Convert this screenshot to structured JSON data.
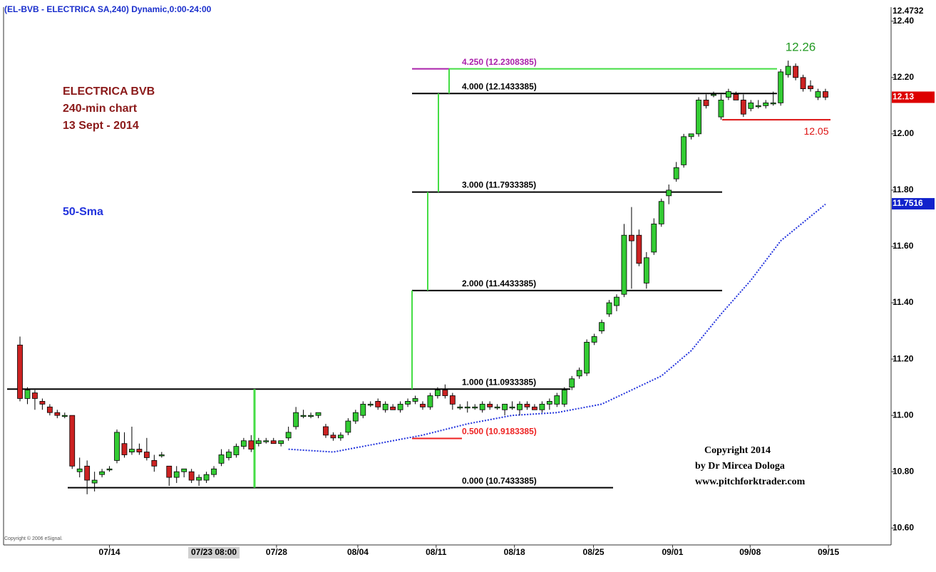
{
  "chart_data": {
    "type": "candlestick",
    "title": "(EL-BVB - ELECTRICA SA,240) Dynamic,0:00-24:00",
    "up_color": "#33cc33",
    "down_color": "#cc2222",
    "candles": [
      [
        11.25,
        11.28,
        11.05,
        11.06
      ],
      [
        11.06,
        11.1,
        11.04,
        11.09
      ],
      [
        11.08,
        11.09,
        11.02,
        11.06
      ],
      [
        11.05,
        11.06,
        11.02,
        11.04
      ],
      [
        11.03,
        11.04,
        11.0,
        11.01
      ],
      [
        11.01,
        11.02,
        10.99,
        11.0
      ],
      [
        11.0,
        11.01,
        10.99,
        11.0
      ],
      [
        11.0,
        11.0,
        10.81,
        10.82
      ],
      [
        10.8,
        10.85,
        10.78,
        10.81
      ],
      [
        10.82,
        10.84,
        10.72,
        10.77
      ],
      [
        10.76,
        10.8,
        10.73,
        10.77
      ],
      [
        10.79,
        10.81,
        10.78,
        10.8
      ],
      [
        10.81,
        10.82,
        10.8,
        10.81
      ],
      [
        10.84,
        10.95,
        10.83,
        10.94
      ],
      [
        10.9,
        10.94,
        10.85,
        10.86
      ],
      [
        10.87,
        10.96,
        10.86,
        10.88
      ],
      [
        10.88,
        10.9,
        10.86,
        10.87
      ],
      [
        10.87,
        10.92,
        10.84,
        10.85
      ],
      [
        10.84,
        10.86,
        10.8,
        10.82
      ],
      [
        10.86,
        10.87,
        10.85,
        10.86
      ],
      [
        10.82,
        10.82,
        10.75,
        10.78
      ],
      [
        10.78,
        10.82,
        10.76,
        10.8
      ],
      [
        10.8,
        10.81,
        10.78,
        10.81
      ],
      [
        10.8,
        10.81,
        10.76,
        10.77
      ],
      [
        10.77,
        10.79,
        10.75,
        10.78
      ],
      [
        10.77,
        10.8,
        10.76,
        10.79
      ],
      [
        10.79,
        10.82,
        10.78,
        10.81
      ],
      [
        10.83,
        10.88,
        10.82,
        10.86
      ],
      [
        10.85,
        10.88,
        10.84,
        10.87
      ],
      [
        10.86,
        10.9,
        10.85,
        10.89
      ],
      [
        10.89,
        10.92,
        10.88,
        10.91
      ],
      [
        10.91,
        10.93,
        10.87,
        10.88
      ],
      [
        10.9,
        10.92,
        10.89,
        10.91
      ],
      [
        10.91,
        10.92,
        10.9,
        10.91
      ],
      [
        10.91,
        10.92,
        10.9,
        10.9
      ],
      [
        10.9,
        10.91,
        10.89,
        10.91
      ],
      [
        10.92,
        10.96,
        10.91,
        10.94
      ],
      [
        10.96,
        11.03,
        10.95,
        11.01
      ],
      [
        11.0,
        11.02,
        10.99,
        11.0
      ],
      [
        11.0,
        11.01,
        10.99,
        11.0
      ],
      [
        11.0,
        11.01,
        10.99,
        11.01
      ],
      [
        10.96,
        10.97,
        10.92,
        10.93
      ],
      [
        10.93,
        10.94,
        10.91,
        10.92
      ],
      [
        10.92,
        10.94,
        10.91,
        10.93
      ],
      [
        10.94,
        10.99,
        10.93,
        10.98
      ],
      [
        10.98,
        11.02,
        10.97,
        11.01
      ],
      [
        11.0,
        11.05,
        10.99,
        11.04
      ],
      [
        11.04,
        11.05,
        11.03,
        11.04
      ],
      [
        11.05,
        11.06,
        11.02,
        11.03
      ],
      [
        11.02,
        11.05,
        11.01,
        11.04
      ],
      [
        11.03,
        11.04,
        11.02,
        11.02
      ],
      [
        11.02,
        11.05,
        11.01,
        11.04
      ],
      [
        11.04,
        11.06,
        11.03,
        11.05
      ],
      [
        11.05,
        11.07,
        11.04,
        11.06
      ],
      [
        11.04,
        11.05,
        11.02,
        11.03
      ],
      [
        11.03,
        11.08,
        11.02,
        11.07
      ],
      [
        11.07,
        11.1,
        11.06,
        11.09
      ],
      [
        11.09,
        11.11,
        11.06,
        11.07
      ],
      [
        11.07,
        11.08,
        11.02,
        11.04
      ],
      [
        11.03,
        11.04,
        11.02,
        11.03
      ],
      [
        11.03,
        11.05,
        11.01,
        11.03
      ],
      [
        11.03,
        11.04,
        11.02,
        11.03
      ],
      [
        11.02,
        11.05,
        11.01,
        11.04
      ],
      [
        11.04,
        11.05,
        11.02,
        11.03
      ],
      [
        11.03,
        11.04,
        11.02,
        11.03
      ],
      [
        11.02,
        11.04,
        11.0,
        11.04
      ],
      [
        11.03,
        11.05,
        11.02,
        11.03
      ],
      [
        11.02,
        11.05,
        11.0,
        11.04
      ],
      [
        11.04,
        11.05,
        11.02,
        11.03
      ],
      [
        11.03,
        11.04,
        11.02,
        11.02
      ],
      [
        11.02,
        11.05,
        11.01,
        11.04
      ],
      [
        11.04,
        11.06,
        11.02,
        11.05
      ],
      [
        11.04,
        11.08,
        11.03,
        11.07
      ],
      [
        11.04,
        11.1,
        11.03,
        11.09
      ],
      [
        11.1,
        11.14,
        11.09,
        11.13
      ],
      [
        11.14,
        11.17,
        11.13,
        11.16
      ],
      [
        11.15,
        11.27,
        11.14,
        11.26
      ],
      [
        11.26,
        11.29,
        11.25,
        11.28
      ],
      [
        11.3,
        11.34,
        11.29,
        11.33
      ],
      [
        11.36,
        11.41,
        11.35,
        11.4
      ],
      [
        11.39,
        11.43,
        11.37,
        11.42
      ],
      [
        11.43,
        11.68,
        11.42,
        11.64
      ],
      [
        11.64,
        11.74,
        11.45,
        11.62
      ],
      [
        11.64,
        11.66,
        11.53,
        11.54
      ],
      [
        11.47,
        11.58,
        11.45,
        11.56
      ],
      [
        11.58,
        11.7,
        11.57,
        11.68
      ],
      [
        11.68,
        11.77,
        11.67,
        11.76
      ],
      [
        11.78,
        11.82,
        11.75,
        11.8
      ],
      [
        11.84,
        11.9,
        11.83,
        11.88
      ],
      [
        11.89,
        12.0,
        11.88,
        11.99
      ],
      [
        11.99,
        12.0,
        11.98,
        12.0
      ],
      [
        12.0,
        12.13,
        11.99,
        12.12
      ],
      [
        12.12,
        12.14,
        12.09,
        12.1
      ],
      [
        12.14,
        12.15,
        12.13,
        12.14
      ],
      [
        12.06,
        12.14,
        12.05,
        12.12
      ],
      [
        12.13,
        12.16,
        12.12,
        12.15
      ],
      [
        12.14,
        12.15,
        12.12,
        12.12
      ],
      [
        12.12,
        12.14,
        12.06,
        12.07
      ],
      [
        12.09,
        12.12,
        12.08,
        12.11
      ],
      [
        12.1,
        12.12,
        12.09,
        12.1
      ],
      [
        12.1,
        12.12,
        12.09,
        12.11
      ],
      [
        12.11,
        12.15,
        12.1,
        12.11
      ],
      [
        12.11,
        12.23,
        12.1,
        12.22
      ],
      [
        12.21,
        12.26,
        12.2,
        12.24
      ],
      [
        12.24,
        12.25,
        12.19,
        12.2
      ],
      [
        12.2,
        12.21,
        12.15,
        12.16
      ],
      [
        12.17,
        12.19,
        12.15,
        12.16
      ],
      [
        12.13,
        12.16,
        12.12,
        12.15
      ],
      [
        12.15,
        12.16,
        12.12,
        12.13
      ]
    ],
    "xlim": [
      -2.2,
      116.8
    ],
    "xticks": [
      {
        "value": 12,
        "label": "07/14"
      },
      {
        "value": 34.4,
        "label": "07/28"
      },
      {
        "value": 45.3,
        "label": "08/04"
      },
      {
        "value": 55.8,
        "label": "08/11"
      },
      {
        "value": 66.3,
        "label": "08/18"
      },
      {
        "value": 76.9,
        "label": "08/25"
      },
      {
        "value": 87.5,
        "label": "09/01"
      },
      {
        "value": 97.9,
        "label": "09/08"
      },
      {
        "value": 108.4,
        "label": "09/15"
      }
    ],
    "cursor": {
      "value": 26,
      "label": "07/23 08:00"
    },
    "ylim": [
      10.54,
      12.45
    ],
    "yticks": [
      {
        "value": 10.6,
        "label": "10.60"
      },
      {
        "value": 10.8,
        "label": "10.80"
      },
      {
        "value": 11.0,
        "label": "11.00"
      },
      {
        "value": 11.2,
        "label": "11.20"
      },
      {
        "value": 11.4,
        "label": "11.40"
      },
      {
        "value": 11.6,
        "label": "11.60"
      },
      {
        "value": 11.8,
        "label": "11.80"
      },
      {
        "value": 12.0,
        "label": "12.00"
      },
      {
        "value": 12.2,
        "label": "12.20"
      },
      {
        "value": 12.4,
        "label": "12.40"
      }
    ],
    "sma": {
      "name": "50-Sma",
      "color": "#2233dd",
      "x": [
        36,
        42,
        48,
        54,
        60,
        66,
        72,
        78,
        82,
        86,
        90,
        94,
        98,
        102,
        108
      ],
      "values": [
        10.88,
        10.87,
        10.9,
        10.93,
        10.97,
        11.0,
        11.01,
        11.04,
        11.09,
        11.14,
        11.23,
        11.36,
        11.48,
        11.62,
        11.75
      ]
    },
    "fib_levels": [
      {
        "label": "0.000 (10.7433385)",
        "value": 10.7433385,
        "color": "#000000"
      },
      {
        "label": "0.500 (10.9183385)",
        "value": 10.9183385,
        "color": "#ee2222"
      },
      {
        "label": "1.000 (11.0933385)",
        "value": 11.0933385,
        "color": "#000000"
      },
      {
        "label": "2.000 (11.4433385)",
        "value": 11.4433385,
        "color": "#000000"
      },
      {
        "label": "3.000 (11.7933385)",
        "value": 11.7933385,
        "color": "#000000"
      },
      {
        "label": "4.000 (12.1433385)",
        "value": 12.1433385,
        "color": "#000000"
      },
      {
        "label": "4.250 (12.2308385)",
        "value": 12.2308385,
        "color": "#aa22aa"
      }
    ],
    "annotations": [
      {
        "text": "12.26",
        "value": 12.26,
        "color": "#229922"
      },
      {
        "text": "12.05",
        "value": 12.05,
        "color": "#dd1111"
      }
    ],
    "price_labels": [
      {
        "label": "12.4732",
        "value": 12.4732,
        "color": "#ffffff"
      },
      {
        "label": "12.13",
        "value": 12.13,
        "color": "#dd0000"
      },
      {
        "label": "11.7516",
        "value": 11.7516,
        "color": "#1122cc"
      }
    ],
    "notes": [
      "ELECTRICA BVB",
      "240-min chart",
      "13 Sept -  2014"
    ],
    "copyright": [
      "Copyright 2014",
      "by Dr Mircea Dologa",
      "www.pitchforktrader.com"
    ],
    "source": "Copyright © 2006 eSignal."
  }
}
